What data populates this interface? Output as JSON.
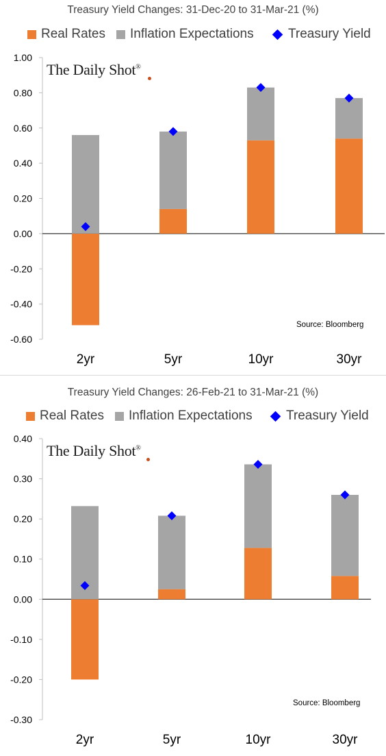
{
  "colors": {
    "real_rates": "#ED7D31",
    "inflation_expectations": "#A5A5A5",
    "treasury_yield": "#0000FF",
    "axis": "#bfbfbf",
    "text": "#404040"
  },
  "watermark": "The Daily Shot",
  "source": "Source: Bloomberg",
  "chart_data": [
    {
      "type": "bar",
      "stacked": true,
      "title": "Treasury Yield Changes: 31-Dec-20 to 31-Mar-21 (%)",
      "categories": [
        "2yr",
        "5yr",
        "10yr",
        "30yr"
      ],
      "series": [
        {
          "name": "Real Rates",
          "kind": "bar",
          "values": [
            -0.52,
            0.14,
            0.53,
            0.54
          ]
        },
        {
          "name": "Inflation Expectations",
          "kind": "bar",
          "values": [
            0.56,
            0.44,
            0.3,
            0.23
          ]
        },
        {
          "name": "Treasury Yield",
          "kind": "marker",
          "values": [
            0.04,
            0.58,
            0.83,
            0.77
          ]
        }
      ],
      "ylim": [
        -0.6,
        1.0
      ],
      "yticks": [
        "1.00",
        "0.80",
        "0.60",
        "0.40",
        "0.20",
        "0.00",
        "-0.20",
        "-0.40",
        "-0.60"
      ],
      "ytick_values": [
        1.0,
        0.8,
        0.6,
        0.4,
        0.2,
        0.0,
        -0.2,
        -0.4,
        -0.6
      ],
      "xlabel": "",
      "ylabel": "",
      "grid": false,
      "legend": "top"
    },
    {
      "type": "bar",
      "stacked": true,
      "title": "Treasury Yield Changes: 26-Feb-21 to 31-Mar-21 (%)",
      "categories": [
        "2yr",
        "5yr",
        "10yr",
        "30yr"
      ],
      "series": [
        {
          "name": "Real Rates",
          "kind": "bar",
          "values": [
            -0.2,
            0.025,
            0.128,
            0.058
          ]
        },
        {
          "name": "Inflation Expectations",
          "kind": "bar",
          "values": [
            0.232,
            0.183,
            0.208,
            0.202
          ]
        },
        {
          "name": "Treasury Yield",
          "kind": "marker",
          "values": [
            0.034,
            0.208,
            0.336,
            0.26
          ]
        }
      ],
      "ylim": [
        -0.3,
        0.4
      ],
      "yticks": [
        "0.40",
        "0.30",
        "0.20",
        "0.10",
        "0.00",
        "-0.10",
        "-0.20",
        "-0.30"
      ],
      "ytick_values": [
        0.4,
        0.3,
        0.2,
        0.1,
        0.0,
        -0.1,
        -0.2,
        -0.3
      ],
      "xlabel": "",
      "ylabel": "",
      "grid": false,
      "legend": "top"
    }
  ]
}
